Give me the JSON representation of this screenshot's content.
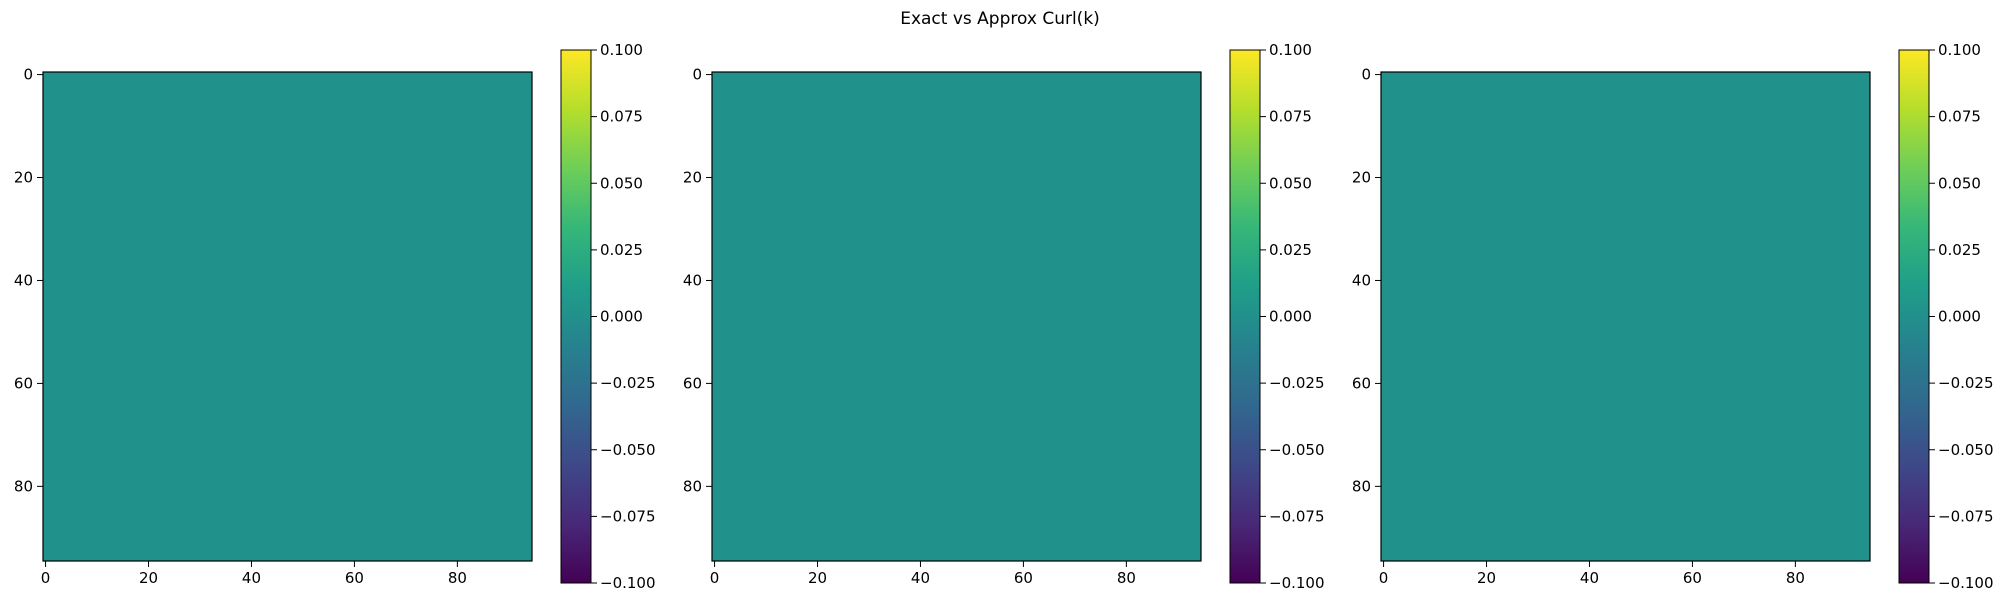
{
  "figure": {
    "title": "Exact vs Approx Curl(k)"
  },
  "colormap": {
    "name": "viridis",
    "stops": [
      "#440154",
      "#482878",
      "#3e4989",
      "#31688e",
      "#26828e",
      "#1f9e89",
      "#35b779",
      "#6ece58",
      "#b5de2b",
      "#fde725"
    ]
  },
  "chart_data": [
    {
      "type": "heatmap",
      "title": "",
      "xlabel": "",
      "ylabel": "",
      "x_ticks": [
        "0",
        "20",
        "40",
        "60",
        "80"
      ],
      "y_ticks": [
        "0",
        "20",
        "40",
        "60",
        "80"
      ],
      "grid_size": [
        95,
        95
      ],
      "field_value": 0.0,
      "field_color": "#21918c",
      "xlim": [
        -0.5,
        94.5
      ],
      "ylim": [
        94.5,
        -0.5
      ],
      "colorbar": {
        "range": [
          -0.1,
          0.1
        ],
        "tick_values": [
          0.1,
          0.075,
          0.05,
          0.025,
          0.0,
          -0.025,
          -0.05,
          -0.075,
          -0.1
        ],
        "tick_labels": [
          "0.100",
          "0.075",
          "0.050",
          "0.025",
          "0.000",
          "−0.025",
          "−0.050",
          "−0.075",
          "−0.100"
        ]
      }
    },
    {
      "type": "heatmap",
      "title": "",
      "xlabel": "",
      "ylabel": "",
      "x_ticks": [
        "0",
        "20",
        "40",
        "60",
        "80"
      ],
      "y_ticks": [
        "0",
        "20",
        "40",
        "60",
        "80"
      ],
      "grid_size": [
        95,
        95
      ],
      "field_value": 0.0,
      "field_color": "#21918c",
      "xlim": [
        -0.5,
        94.5
      ],
      "ylim": [
        94.5,
        -0.5
      ],
      "colorbar": {
        "range": [
          -0.1,
          0.1
        ],
        "tick_values": [
          0.1,
          0.075,
          0.05,
          0.025,
          0.0,
          -0.025,
          -0.05,
          -0.075,
          -0.1
        ],
        "tick_labels": [
          "0.100",
          "0.075",
          "0.050",
          "0.025",
          "0.000",
          "−0.025",
          "−0.050",
          "−0.075",
          "−0.100"
        ]
      }
    },
    {
      "type": "heatmap",
      "title": "",
      "xlabel": "",
      "ylabel": "",
      "x_ticks": [
        "0",
        "20",
        "40",
        "60",
        "80"
      ],
      "y_ticks": [
        "0",
        "20",
        "40",
        "60",
        "80"
      ],
      "grid_size": [
        95,
        95
      ],
      "field_value": 0.0,
      "field_color": "#21918c",
      "xlim": [
        -0.5,
        94.5
      ],
      "ylim": [
        94.5,
        -0.5
      ],
      "colorbar": {
        "range": [
          -0.1,
          0.1
        ],
        "tick_values": [
          0.1,
          0.075,
          0.05,
          0.025,
          0.0,
          -0.025,
          -0.05,
          -0.075,
          -0.1
        ],
        "tick_labels": [
          "0.100",
          "0.075",
          "0.050",
          "0.025",
          "0.000",
          "−0.025",
          "−0.050",
          "−0.075",
          "−0.100"
        ]
      }
    }
  ]
}
